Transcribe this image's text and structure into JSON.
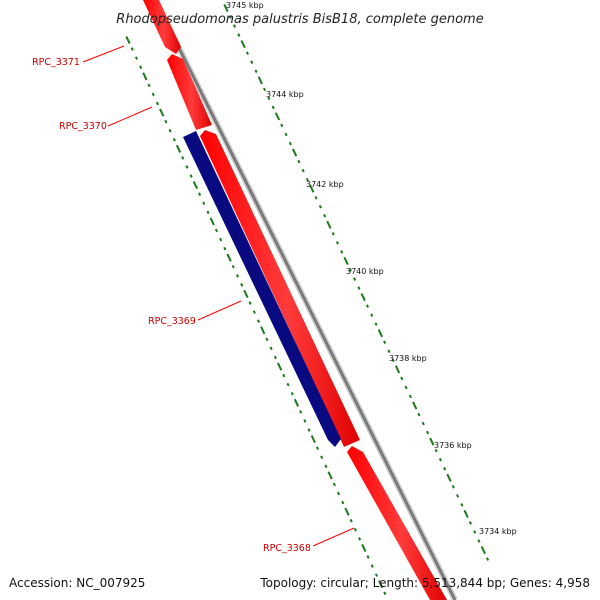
{
  "title": "Rhodopseudomonas palustris BisB18, complete genome",
  "footer": {
    "accession": "Accession: NC_007925",
    "summary": "Topology: circular; Length: 5,513,844 bp; Genes: 4,958"
  },
  "colors": {
    "forward_strand": "#ff0000",
    "reverse_strand": "#000080",
    "backbone": "#808080",
    "ticks": "#1a7a1a",
    "label": "#cc0000"
  },
  "scale_ticks": [
    "3745 kbp",
    "3744 kbp",
    "3742 kbp",
    "3740 kbp",
    "3738 kbp",
    "3736 kbp",
    "3734 kbp"
  ],
  "genes": [
    {
      "name": "RPC_3371",
      "strand": "forward"
    },
    {
      "name": "RPC_3370",
      "strand": "forward"
    },
    {
      "name": "RPC_3369",
      "strand": "reverse"
    },
    {
      "name": "RPC_3368",
      "strand": "forward"
    }
  ]
}
